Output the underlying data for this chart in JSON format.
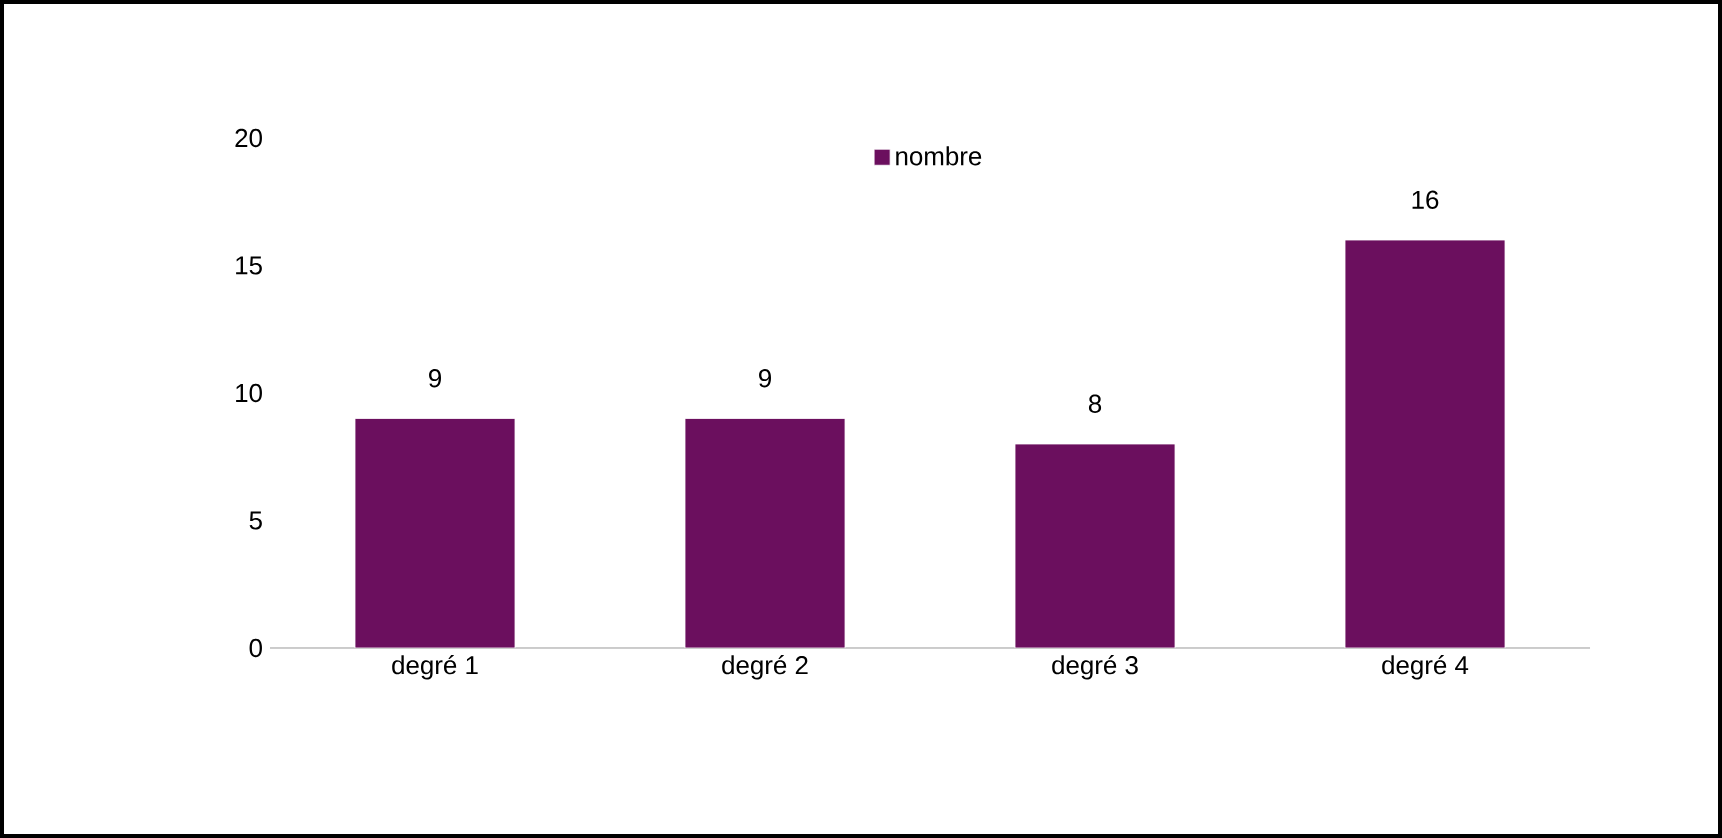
{
  "chart_data": {
    "type": "bar",
    "categories": [
      "degré 1",
      "degré 2",
      "degré 3",
      "degré 4"
    ],
    "series": [
      {
        "name": "nombre",
        "color": "#6b0f5e",
        "values": [
          9,
          9,
          8,
          16
        ]
      }
    ],
    "ylim": [
      0,
      20
    ],
    "yticks": [
      0,
      5,
      10,
      15,
      20
    ],
    "data_labels": true,
    "legend": "top",
    "grid": false
  }
}
